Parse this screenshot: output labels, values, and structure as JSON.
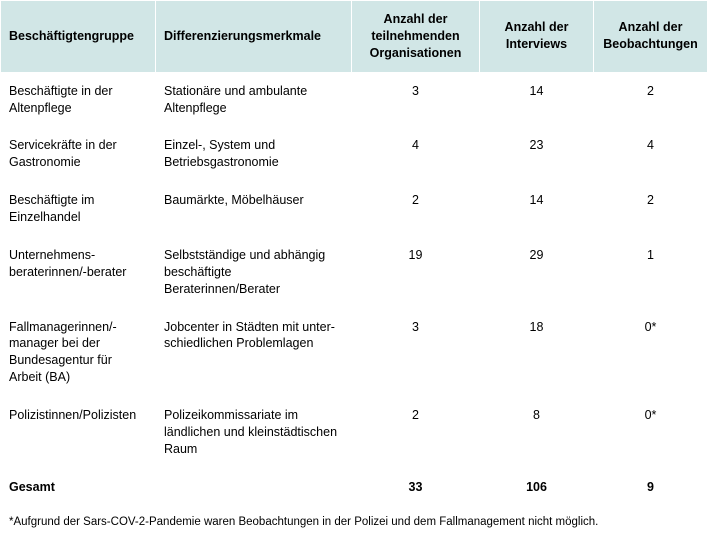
{
  "table": {
    "header_bg": "#d1e6e6",
    "border_color": "#ffffff",
    "columns": [
      {
        "label": "Beschäftigtengruppe",
        "align": "left"
      },
      {
        "label": "Differenzierungsmerkmale",
        "align": "left"
      },
      {
        "label": "Anzahl der teilnehmenden Organisationen",
        "align": "center"
      },
      {
        "label": "Anzahl der Inter­views",
        "align": "center"
      },
      {
        "label": "Anzahl der Beob­achtungen",
        "align": "center"
      }
    ],
    "rows": [
      {
        "group": "Beschäftigte in der Altenpflege",
        "diff": "Stationäre und ambulante Altenpflege",
        "orgs": "3",
        "interviews": "14",
        "obs": "2"
      },
      {
        "group": "Servicekräfte in der Gastronomie",
        "diff": "Einzel-, System und Betriebsgastronomie",
        "orgs": "4",
        "interviews": "23",
        "obs": "4"
      },
      {
        "group": "Beschäftigte im Einzelhandel",
        "diff": "Baumärkte, Möbelhäuser",
        "orgs": "2",
        "interviews": "14",
        "obs": "2"
      },
      {
        "group": "Unternehmens­beraterinnen/-berater",
        "diff": "Selbstständige und abhängig be­schäftigte Beraterinnen/Berater",
        "orgs": "19",
        "interviews": "29",
        "obs": "1"
      },
      {
        "group": "Fallmanagerinnen/-manager bei der Bundes­agentur für Arbeit (BA)",
        "diff": "Jobcenter in Städten mit unter­schiedlichen Problemlagen",
        "orgs": "3",
        "interviews": "18",
        "obs": "0*"
      },
      {
        "group": "Polizistinnen/Polizisten",
        "diff": "Polizeikommissariate im ländlichen und kleinstädtischen Raum",
        "orgs": "2",
        "interviews": "8",
        "obs": "0*"
      }
    ],
    "totals": {
      "label": "Gesamt",
      "orgs": "33",
      "interviews": "106",
      "obs": "9"
    },
    "footnote": "*Aufgrund der Sars-COV-2-Pandemie waren Beobachtungen in der Polizei und dem Fallmanagement nicht möglich."
  }
}
